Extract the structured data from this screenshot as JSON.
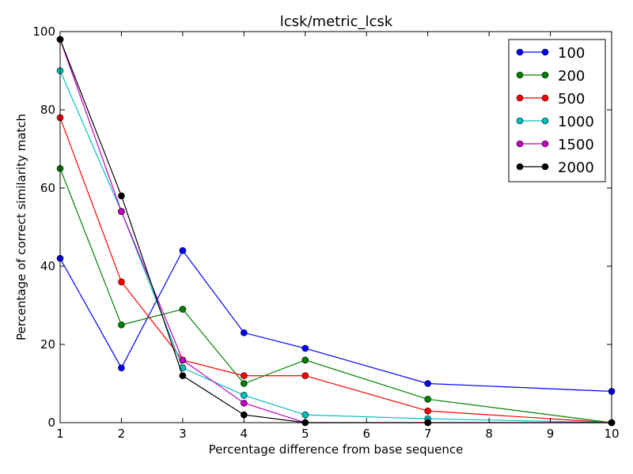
{
  "chart_data": {
    "type": "line",
    "title": "lcsk/metric_lcsk",
    "xlabel": "Percentage difference from base sequence",
    "ylabel": "Percentage of correct similarity match",
    "xlim": [
      1,
      10
    ],
    "ylim": [
      0,
      100
    ],
    "xticks": [
      1,
      2,
      3,
      4,
      5,
      6,
      7,
      8,
      9,
      10
    ],
    "yticks": [
      0,
      20,
      40,
      60,
      80,
      100
    ],
    "grid": false,
    "legend_position": "top-right",
    "x": [
      1,
      2,
      3,
      4,
      5,
      7,
      10
    ],
    "series": [
      {
        "name": "100",
        "color": "#0000ff",
        "values": [
          42,
          14,
          44,
          23,
          19,
          10,
          8
        ]
      },
      {
        "name": "200",
        "color": "#008000",
        "values": [
          65,
          25,
          29,
          10,
          16,
          6,
          0
        ]
      },
      {
        "name": "500",
        "color": "#ff0000",
        "values": [
          78,
          36,
          16,
          12,
          12,
          3,
          0
        ]
      },
      {
        "name": "1000",
        "color": "#00bfbf",
        "values": [
          90,
          54,
          14,
          7,
          2,
          1,
          0
        ]
      },
      {
        "name": "1500",
        "color": "#bf00bf",
        "values": [
          98,
          54,
          16,
          5,
          0,
          0,
          0
        ]
      },
      {
        "name": "2000",
        "color": "#000000",
        "values": [
          98,
          58,
          12,
          2,
          0,
          0,
          0
        ]
      }
    ]
  }
}
